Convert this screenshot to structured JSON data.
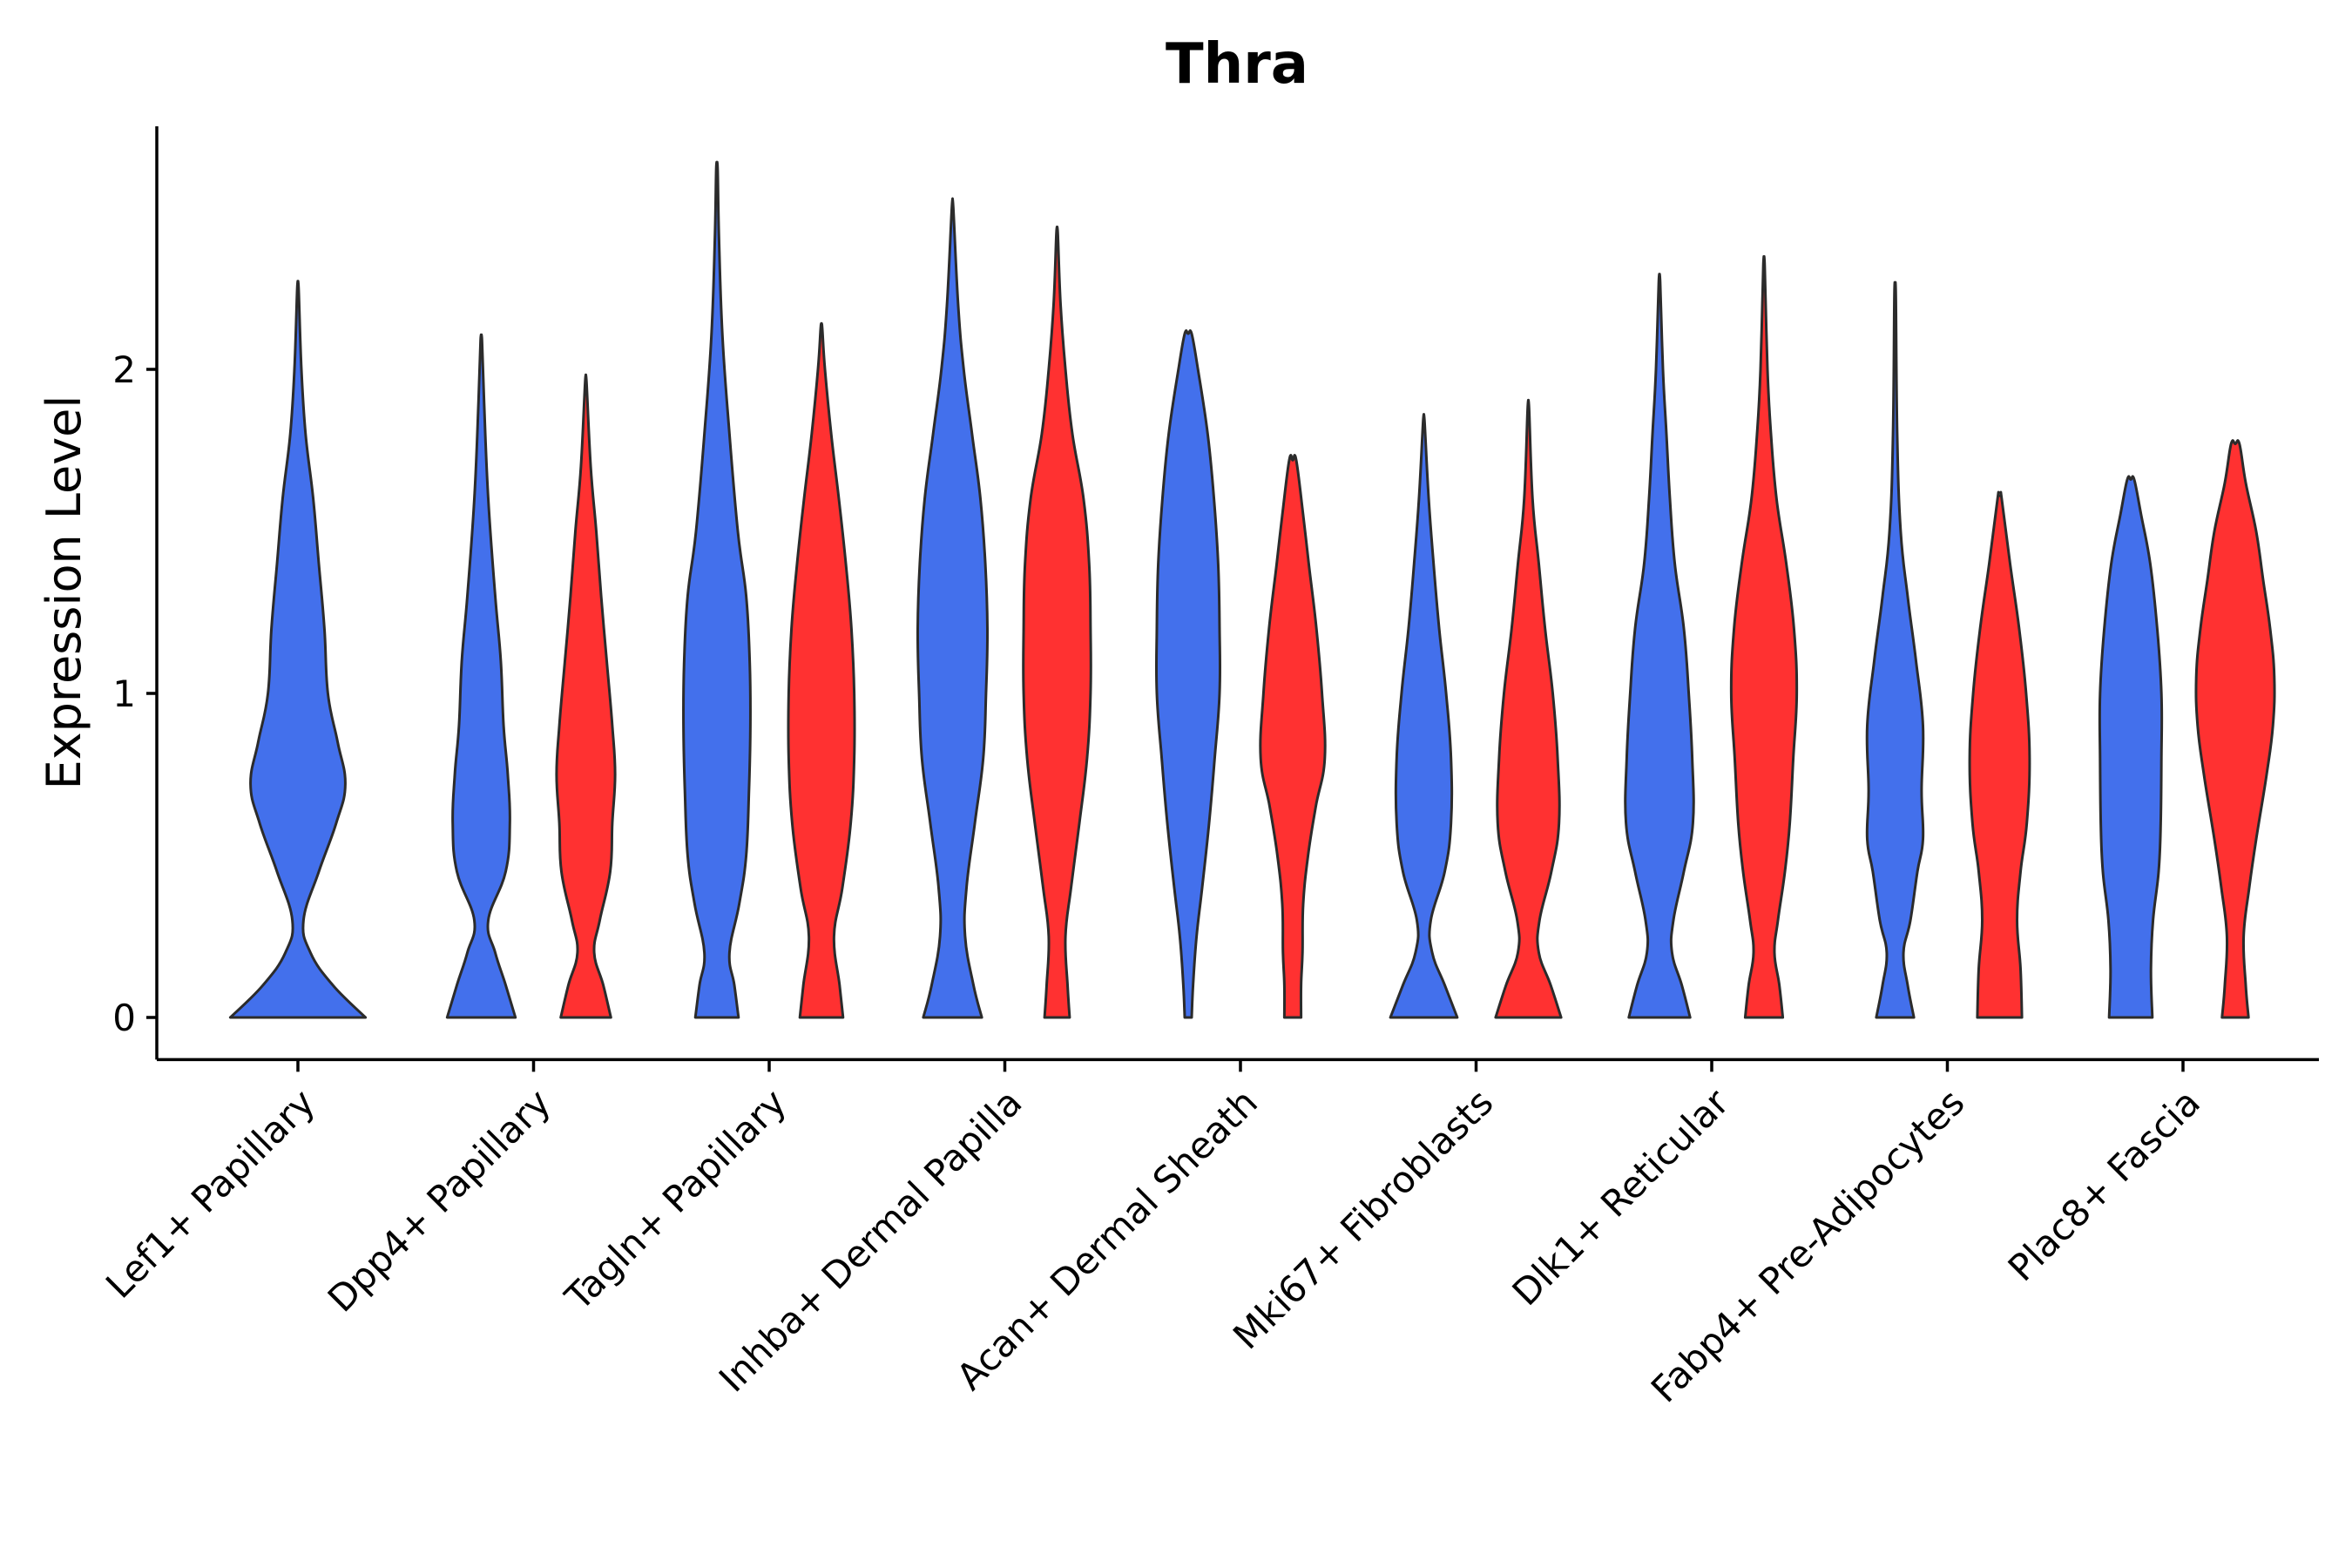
{
  "chart_data": {
    "type": "violin",
    "title": "Thra",
    "ylabel": "Expression Level",
    "xlabel": "",
    "ylim": [
      -0.13,
      2.75
    ],
    "yticks": [
      0,
      1,
      2
    ],
    "colors": {
      "blue": "#4370EC",
      "red": "#FF3131"
    },
    "categories": [
      "Lef1+ Papillary",
      "Dpp4+ Papillary",
      "Tagln+ Papillary",
      "Inhba+ Dermal Papilla",
      "Acan+ Dermal Sheath",
      "Mki67+ Fibroblasts",
      "Dlk1+ Reticular",
      "Fabp4+ Pre-Adipocytes",
      "Plac8+ Fascia"
    ],
    "violins": [
      {
        "category": 0,
        "group": "blue",
        "max": 2.25,
        "profile": [
          [
            0,
            0.97
          ],
          [
            0.1,
            0.5
          ],
          [
            0.2,
            0.18
          ],
          [
            0.3,
            0.08
          ],
          [
            0.45,
            0.3
          ],
          [
            0.6,
            0.55
          ],
          [
            0.72,
            0.68
          ],
          [
            0.85,
            0.57
          ],
          [
            1.0,
            0.43
          ],
          [
            1.2,
            0.38
          ],
          [
            1.4,
            0.3
          ],
          [
            1.6,
            0.22
          ],
          [
            1.8,
            0.11
          ],
          [
            2.0,
            0.05
          ],
          [
            2.25,
            0.01
          ]
        ]
      },
      {
        "category": 1,
        "group": "blue",
        "max": 2.09,
        "profile": [
          [
            0,
            0.49
          ],
          [
            0.1,
            0.35
          ],
          [
            0.2,
            0.2
          ],
          [
            0.3,
            0.1
          ],
          [
            0.45,
            0.35
          ],
          [
            0.6,
            0.41
          ],
          [
            0.75,
            0.38
          ],
          [
            0.9,
            0.32
          ],
          [
            1.1,
            0.28
          ],
          [
            1.3,
            0.2
          ],
          [
            1.6,
            0.1
          ],
          [
            1.9,
            0.04
          ],
          [
            2.09,
            0.01
          ]
        ]
      },
      {
        "category": 1,
        "group": "red",
        "max": 1.96,
        "profile": [
          [
            0,
            0.36
          ],
          [
            0.1,
            0.25
          ],
          [
            0.2,
            0.12
          ],
          [
            0.3,
            0.2
          ],
          [
            0.45,
            0.35
          ],
          [
            0.6,
            0.38
          ],
          [
            0.75,
            0.42
          ],
          [
            0.9,
            0.38
          ],
          [
            1.1,
            0.3
          ],
          [
            1.3,
            0.22
          ],
          [
            1.5,
            0.15
          ],
          [
            1.7,
            0.07
          ],
          [
            1.96,
            0.01
          ]
        ]
      },
      {
        "category": 2,
        "group": "blue",
        "max": 2.62,
        "profile": [
          [
            0,
            0.31
          ],
          [
            0.1,
            0.25
          ],
          [
            0.2,
            0.18
          ],
          [
            0.35,
            0.32
          ],
          [
            0.5,
            0.42
          ],
          [
            0.7,
            0.46
          ],
          [
            0.9,
            0.48
          ],
          [
            1.1,
            0.47
          ],
          [
            1.3,
            0.42
          ],
          [
            1.5,
            0.3
          ],
          [
            1.8,
            0.18
          ],
          [
            2.1,
            0.08
          ],
          [
            2.4,
            0.03
          ],
          [
            2.62,
            0.01
          ]
        ]
      },
      {
        "category": 2,
        "group": "red",
        "max": 2.13,
        "profile": [
          [
            0,
            0.31
          ],
          [
            0.1,
            0.26
          ],
          [
            0.25,
            0.18
          ],
          [
            0.4,
            0.3
          ],
          [
            0.6,
            0.42
          ],
          [
            0.8,
            0.47
          ],
          [
            1.0,
            0.47
          ],
          [
            1.2,
            0.43
          ],
          [
            1.4,
            0.35
          ],
          [
            1.6,
            0.25
          ],
          [
            1.8,
            0.14
          ],
          [
            2.0,
            0.05
          ],
          [
            2.13,
            0.01
          ]
        ]
      },
      {
        "category": 3,
        "group": "blue",
        "max": 2.5,
        "profile": [
          [
            0,
            0.42
          ],
          [
            0.1,
            0.3
          ],
          [
            0.25,
            0.18
          ],
          [
            0.4,
            0.2
          ],
          [
            0.6,
            0.32
          ],
          [
            0.8,
            0.44
          ],
          [
            1.0,
            0.48
          ],
          [
            1.2,
            0.5
          ],
          [
            1.4,
            0.47
          ],
          [
            1.6,
            0.4
          ],
          [
            1.8,
            0.28
          ],
          [
            2.0,
            0.16
          ],
          [
            2.2,
            0.08
          ],
          [
            2.5,
            0.01
          ]
        ]
      },
      {
        "category": 3,
        "group": "red",
        "max": 2.42,
        "profile": [
          [
            0,
            0.18
          ],
          [
            0.1,
            0.15
          ],
          [
            0.25,
            0.12
          ],
          [
            0.4,
            0.2
          ],
          [
            0.6,
            0.32
          ],
          [
            0.8,
            0.43
          ],
          [
            1.0,
            0.48
          ],
          [
            1.2,
            0.48
          ],
          [
            1.4,
            0.46
          ],
          [
            1.6,
            0.38
          ],
          [
            1.8,
            0.22
          ],
          [
            2.0,
            0.12
          ],
          [
            2.2,
            0.05
          ],
          [
            2.42,
            0.01
          ]
        ]
      },
      {
        "category": 4,
        "group": "blue",
        "max": 2.11,
        "profile": [
          [
            0,
            0.05
          ],
          [
            0.1,
            0.07
          ],
          [
            0.25,
            0.12
          ],
          [
            0.4,
            0.2
          ],
          [
            0.6,
            0.3
          ],
          [
            0.8,
            0.38
          ],
          [
            1.0,
            0.45
          ],
          [
            1.2,
            0.45
          ],
          [
            1.4,
            0.43
          ],
          [
            1.6,
            0.37
          ],
          [
            1.8,
            0.28
          ],
          [
            2.0,
            0.14
          ],
          [
            2.11,
            0.05
          ]
        ]
      },
      {
        "category": 4,
        "group": "red",
        "max": 1.72,
        "profile": [
          [
            0,
            0.12
          ],
          [
            0.1,
            0.12
          ],
          [
            0.2,
            0.14
          ],
          [
            0.35,
            0.15
          ],
          [
            0.5,
            0.22
          ],
          [
            0.65,
            0.33
          ],
          [
            0.8,
            0.46
          ],
          [
            1.0,
            0.42
          ],
          [
            1.2,
            0.34
          ],
          [
            1.4,
            0.23
          ],
          [
            1.55,
            0.15
          ],
          [
            1.72,
            0.05
          ]
        ]
      },
      {
        "category": 5,
        "group": "blue",
        "max": 1.84,
        "profile": [
          [
            0,
            0.48
          ],
          [
            0.1,
            0.3
          ],
          [
            0.2,
            0.12
          ],
          [
            0.3,
            0.1
          ],
          [
            0.45,
            0.3
          ],
          [
            0.6,
            0.39
          ],
          [
            0.8,
            0.39
          ],
          [
            1.0,
            0.32
          ],
          [
            1.2,
            0.22
          ],
          [
            1.4,
            0.14
          ],
          [
            1.6,
            0.07
          ],
          [
            1.84,
            0.01
          ]
        ]
      },
      {
        "category": 5,
        "group": "red",
        "max": 1.88,
        "profile": [
          [
            0,
            0.47
          ],
          [
            0.1,
            0.32
          ],
          [
            0.2,
            0.15
          ],
          [
            0.3,
            0.16
          ],
          [
            0.45,
            0.33
          ],
          [
            0.6,
            0.44
          ],
          [
            0.8,
            0.42
          ],
          [
            1.0,
            0.35
          ],
          [
            1.2,
            0.24
          ],
          [
            1.4,
            0.15
          ],
          [
            1.6,
            0.06
          ],
          [
            1.88,
            0.01
          ]
        ]
      },
      {
        "category": 6,
        "group": "blue",
        "max": 2.27,
        "profile": [
          [
            0,
            0.44
          ],
          [
            0.1,
            0.32
          ],
          [
            0.2,
            0.18
          ],
          [
            0.3,
            0.2
          ],
          [
            0.45,
            0.35
          ],
          [
            0.6,
            0.48
          ],
          [
            0.8,
            0.47
          ],
          [
            1.0,
            0.42
          ],
          [
            1.2,
            0.35
          ],
          [
            1.4,
            0.22
          ],
          [
            1.6,
            0.15
          ],
          [
            1.8,
            0.1
          ],
          [
            2.0,
            0.05
          ],
          [
            2.27,
            0.01
          ]
        ]
      },
      {
        "category": 6,
        "group": "red",
        "max": 2.32,
        "profile": [
          [
            0,
            0.27
          ],
          [
            0.1,
            0.22
          ],
          [
            0.2,
            0.15
          ],
          [
            0.3,
            0.2
          ],
          [
            0.45,
            0.3
          ],
          [
            0.6,
            0.37
          ],
          [
            0.8,
            0.42
          ],
          [
            1.0,
            0.47
          ],
          [
            1.2,
            0.43
          ],
          [
            1.4,
            0.32
          ],
          [
            1.6,
            0.18
          ],
          [
            1.8,
            0.1
          ],
          [
            2.0,
            0.05
          ],
          [
            2.32,
            0.01
          ]
        ]
      },
      {
        "category": 7,
        "group": "blue",
        "max": 2.23,
        "profile": [
          [
            0,
            0.27
          ],
          [
            0.1,
            0.18
          ],
          [
            0.2,
            0.12
          ],
          [
            0.3,
            0.22
          ],
          [
            0.45,
            0.32
          ],
          [
            0.55,
            0.4
          ],
          [
            0.7,
            0.38
          ],
          [
            0.9,
            0.4
          ],
          [
            1.1,
            0.3
          ],
          [
            1.3,
            0.18
          ],
          [
            1.5,
            0.08
          ],
          [
            1.8,
            0.03
          ],
          [
            2.23,
            0.01
          ]
        ]
      },
      {
        "category": 7,
        "group": "red",
        "max": 1.61,
        "profile": [
          [
            0,
            0.32
          ],
          [
            0.15,
            0.3
          ],
          [
            0.3,
            0.25
          ],
          [
            0.45,
            0.3
          ],
          [
            0.6,
            0.39
          ],
          [
            0.8,
            0.43
          ],
          [
            1.0,
            0.38
          ],
          [
            1.2,
            0.28
          ],
          [
            1.4,
            0.15
          ],
          [
            1.6,
            0.03
          ],
          [
            1.61,
            0.02
          ]
        ]
      },
      {
        "category": 8,
        "group": "blue",
        "max": 1.66,
        "profile": [
          [
            0,
            0.31
          ],
          [
            0.15,
            0.29
          ],
          [
            0.3,
            0.32
          ],
          [
            0.45,
            0.4
          ],
          [
            0.6,
            0.43
          ],
          [
            0.8,
            0.44
          ],
          [
            1.0,
            0.44
          ],
          [
            1.2,
            0.38
          ],
          [
            1.4,
            0.28
          ],
          [
            1.55,
            0.15
          ],
          [
            1.66,
            0.05
          ]
        ]
      },
      {
        "category": 8,
        "group": "red",
        "max": 1.77,
        "profile": [
          [
            0,
            0.19
          ],
          [
            0.1,
            0.15
          ],
          [
            0.25,
            0.12
          ],
          [
            0.4,
            0.2
          ],
          [
            0.55,
            0.3
          ],
          [
            0.75,
            0.45
          ],
          [
            0.9,
            0.54
          ],
          [
            1.05,
            0.56
          ],
          [
            1.2,
            0.5
          ],
          [
            1.35,
            0.4
          ],
          [
            1.5,
            0.3
          ],
          [
            1.65,
            0.15
          ],
          [
            1.77,
            0.06
          ]
        ]
      }
    ]
  }
}
